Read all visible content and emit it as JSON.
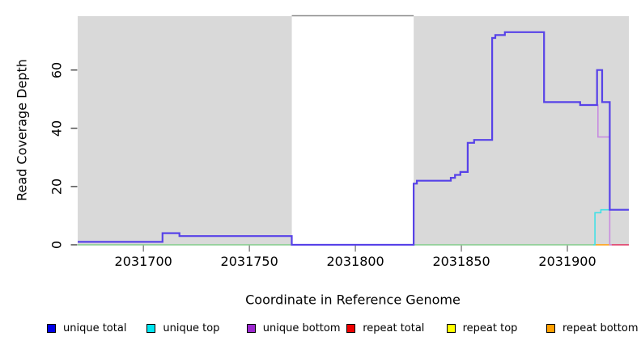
{
  "figure": {
    "xlabel": "Coordinate in Reference Genome",
    "ylabel": "Read Coverage Depth"
  },
  "legend": {
    "items": [
      {
        "label": "unique total",
        "color": "#0000e6"
      },
      {
        "label": "unique top",
        "color": "#00e6f0"
      },
      {
        "label": "unique bottom",
        "color": "#9c27cf"
      },
      {
        "label": "repeat total",
        "color": "#ee0000"
      },
      {
        "label": "repeat top",
        "color": "#ffff00"
      },
      {
        "label": "repeat bottom",
        "color": "#ff9f00"
      }
    ]
  },
  "chart_data": {
    "type": "line",
    "subtype": "step",
    "title": "",
    "xlabel": "Coordinate in Reference Genome",
    "ylabel": "Read Coverage Depth",
    "xlim": [
      2031669,
      2031929
    ],
    "ylim": [
      0,
      78.5
    ],
    "x_ticks": [
      2031700,
      2031750,
      2031800,
      2031850,
      2031900
    ],
    "y_ticks": [
      0,
      20,
      40,
      60
    ],
    "grid": false,
    "panel_background": "#d9d9d9",
    "highlight_region": {
      "x_start": 2031770,
      "x_end": 2031827.5,
      "fill": "#ffffff",
      "border_top": "#8a8a8a"
    },
    "baseline_segments": [
      {
        "name": "baseline-left-green",
        "color": "#8fce96",
        "y": 0,
        "x_start": 2031669,
        "x_end": 2031913
      },
      {
        "name": "baseline-mid-orange",
        "color": "#ffa520",
        "y": 0,
        "x_start": 2031913,
        "x_end": 2031920.5
      },
      {
        "name": "baseline-right-crimson",
        "color": "#e1466e",
        "y": 0,
        "x_start": 2031920.5,
        "x_end": 2031929
      }
    ],
    "series": [
      {
        "name": "unique total",
        "stroke": "#5742e8",
        "width": 2.2,
        "points": [
          [
            2031669,
            1
          ],
          [
            2031709,
            4
          ],
          [
            2031717,
            3
          ],
          [
            2031770,
            0
          ],
          [
            2031827.5,
            21
          ],
          [
            2031829,
            22
          ],
          [
            2031845,
            23
          ],
          [
            2031847,
            24
          ],
          [
            2031849.5,
            25
          ],
          [
            2031853,
            35
          ],
          [
            2031856,
            36
          ],
          [
            2031864.5,
            71
          ],
          [
            2031866,
            72
          ],
          [
            2031870.5,
            73
          ],
          [
            2031889,
            49
          ],
          [
            2031906,
            48
          ],
          [
            2031914,
            60
          ],
          [
            2031916.4,
            49
          ],
          [
            2031920,
            12
          ],
          [
            2031929,
            12
          ]
        ]
      },
      {
        "name": "unique top",
        "stroke": "#40e0e6",
        "width": 1.6,
        "points": [
          [
            2031912.2,
            0
          ],
          [
            2031913,
            11
          ],
          [
            2031915.8,
            12
          ],
          [
            2031929,
            12
          ]
        ]
      },
      {
        "name": "unique bottom",
        "stroke": "#c88ce0",
        "width": 1.6,
        "points": [
          [
            2031913.6,
            48
          ],
          [
            2031914.4,
            37
          ],
          [
            2031920,
            0
          ],
          [
            2031921,
            0
          ]
        ]
      }
    ],
    "draw_order_note": "baselines first, then unique top, unique bottom, unique total on top"
  },
  "layout_values": {
    "legend_start_x": 58,
    "legend_spacing": 123.4
  }
}
